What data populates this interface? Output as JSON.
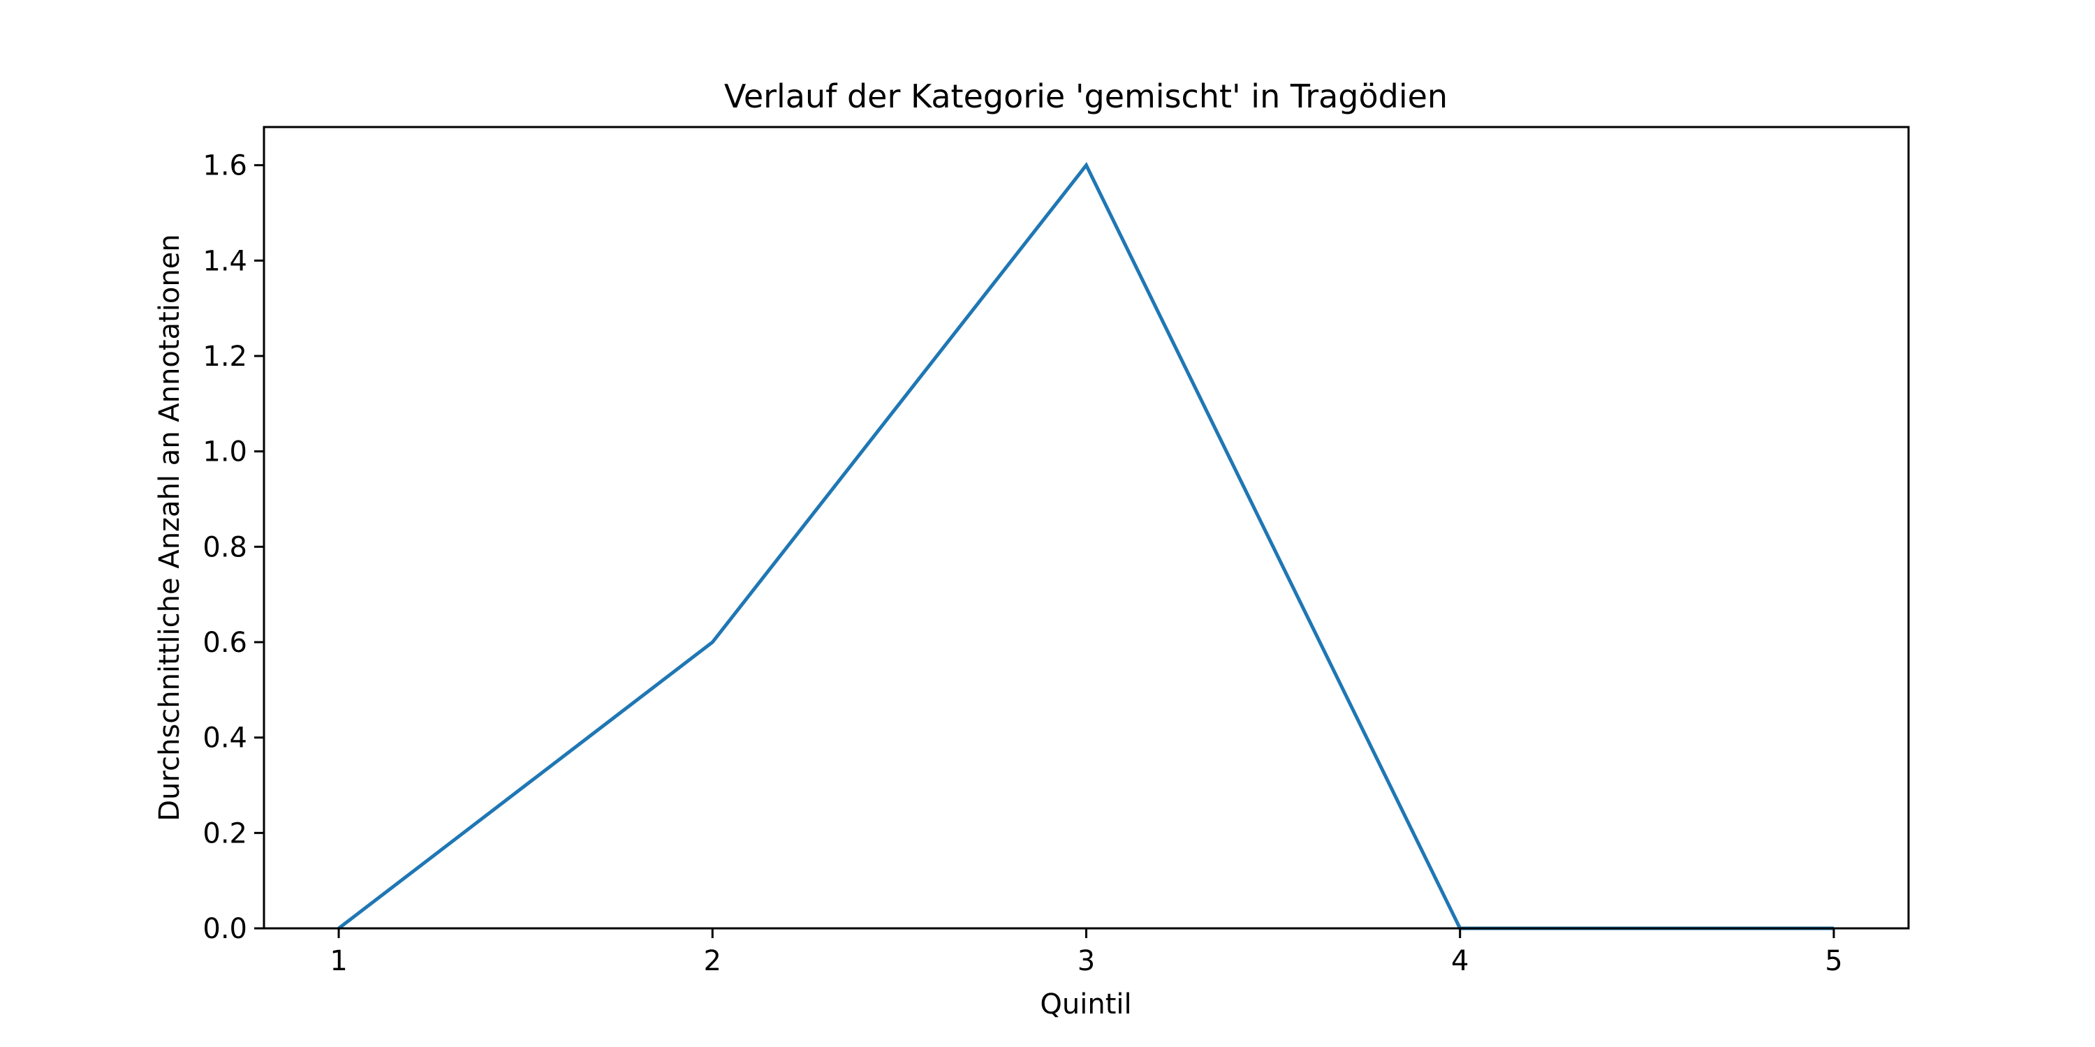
{
  "chart_data": {
    "type": "line",
    "title": "Verlauf der Kategorie 'gemischt' in Tragödien",
    "xlabel": "Quintil",
    "ylabel": "Durchschnittliche Anzahl an Annotationen",
    "x": [
      1,
      2,
      3,
      4,
      5
    ],
    "x_tick_labels": [
      "1",
      "2",
      "3",
      "4",
      "5"
    ],
    "xlim": [
      0.8,
      5.2
    ],
    "ylim": [
      0,
      1.68
    ],
    "y_ticks": [
      0.0,
      0.2,
      0.4,
      0.6,
      0.8,
      1.0,
      1.2,
      1.4,
      1.6
    ],
    "y_tick_labels": [
      "0.0",
      "0.2",
      "0.4",
      "0.6",
      "0.8",
      "1.0",
      "1.2",
      "1.4",
      "1.6"
    ],
    "grid": false,
    "series": [
      {
        "values": [
          0.0,
          0.6,
          1.6,
          0.0,
          0.0
        ],
        "color": "#1f77b4"
      }
    ]
  }
}
